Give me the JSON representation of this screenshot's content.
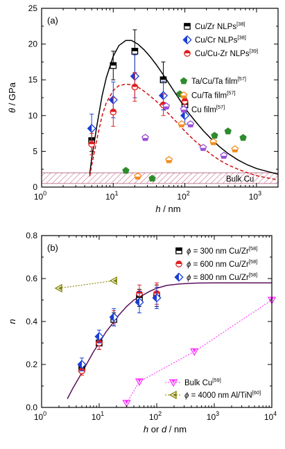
{
  "chart_data": [
    {
      "panel_label": "(a)",
      "type": "scatter",
      "xlabel_var": "h",
      "xlabel_unit": " / nm",
      "ylabel_var": "θ",
      "ylabel_unit": " / GPa",
      "x_scale": "log",
      "xlim": [
        1,
        2000
      ],
      "ylim": [
        0,
        25
      ],
      "xticks": [
        {
          "v": 1,
          "b": "10",
          "e": "0"
        },
        {
          "v": 10,
          "b": "10",
          "e": "1"
        },
        {
          "v": 100,
          "b": "10",
          "e": "2"
        },
        {
          "v": 1000,
          "b": "10",
          "e": "3"
        }
      ],
      "yticks": [
        0,
        5,
        10,
        15,
        20,
        25
      ],
      "ytick_labels": [
        "0",
        "5",
        "10",
        "15",
        "20",
        "25"
      ],
      "band": {
        "label": "Bulk Cu",
        "y_range": [
          0.5,
          2.0
        ],
        "color": "#b05c7a"
      },
      "series": [
        {
          "name": "Cu/Zr NLPs",
          "ref": "[38]",
          "marker": "square-half",
          "color": "#000000",
          "x": [
            5,
            10,
            20,
            50,
            100
          ],
          "y": [
            6.5,
            17.0,
            19.0,
            15.0,
            11.5
          ],
          "err": [
            1.5,
            2.0,
            3.0,
            2.5,
            1.0
          ]
        },
        {
          "name": "Cu/Cr NLPs",
          "ref": "[38]",
          "marker": "diamond-half",
          "color": "#1a3fd4",
          "x": [
            5,
            10,
            20,
            50,
            100
          ],
          "y": [
            8.2,
            12.2,
            15.5,
            12.8,
            10.0
          ],
          "err": [
            2.0,
            2.5,
            3.0,
            2.0,
            1.2
          ]
        },
        {
          "name": "Cu/Cu-Zr NLPs",
          "ref": "[39]",
          "marker": "circle-half",
          "color": "#e02020",
          "x": [
            5,
            10,
            20,
            50,
            100
          ],
          "y": [
            6.0,
            10.5,
            14.0,
            11.5,
            12.0
          ],
          "err": [
            1.5,
            2.0,
            2.0,
            1.5,
            1.0
          ]
        },
        {
          "name": "Ta/Cu/Ta film",
          "ref": "[57]",
          "marker": "pentagon-filled",
          "color": "#2e8b2e",
          "x": [
            15,
            35,
            85,
            260,
            400,
            650
          ],
          "y": [
            2.3,
            1.2,
            13.0,
            7.2,
            7.8,
            6.9
          ]
        },
        {
          "name": "Cu/Ta film",
          "ref": "[57]",
          "marker": "pentagon-half",
          "color": "#f28c1e",
          "x": [
            22,
            60,
            90,
            250,
            500
          ],
          "y": [
            1.5,
            3.8,
            8.8,
            6.3,
            5.3
          ]
        },
        {
          "name": "Cu film",
          "ref": "[57]",
          "marker": "pentagon-half",
          "color": "#9a4fd6",
          "x": [
            28,
            55,
            120,
            180,
            350
          ],
          "y": [
            6.9,
            11.3,
            8.8,
            5.5,
            4.4
          ]
        }
      ],
      "fits": [
        {
          "style": "solid",
          "color": "#000000",
          "x": [
            4.7,
            5,
            6,
            7,
            8,
            10,
            12,
            15,
            18,
            22,
            27,
            33,
            40,
            50,
            60,
            75,
            90,
            110,
            140,
            180,
            230,
            300,
            400,
            550,
            750,
            1000,
            1400,
            2000
          ],
          "y": [
            1.8,
            4.0,
            9.0,
            12.8,
            15.3,
            18.3,
            19.8,
            20.5,
            20.5,
            20.0,
            19.2,
            18.2,
            17.1,
            15.7,
            14.5,
            13.0,
            11.8,
            10.5,
            9.2,
            7.9,
            6.8,
            5.7,
            4.7,
            3.8,
            3.1,
            2.6,
            2.2,
            1.8
          ]
        },
        {
          "style": "dashed",
          "color": "#d01010",
          "x": [
            4.7,
            5,
            6,
            7,
            8,
            10,
            12,
            15,
            18,
            22,
            27,
            33,
            40,
            50,
            60,
            75,
            90,
            110,
            140,
            180,
            230,
            300,
            400,
            550,
            750,
            1000,
            1400,
            2000
          ],
          "y": [
            1.5,
            3.0,
            7.0,
            10.0,
            11.8,
            13.5,
            14.2,
            14.4,
            14.3,
            14.0,
            13.4,
            12.7,
            12.0,
            11.0,
            10.2,
            9.2,
            8.3,
            7.4,
            6.4,
            5.5,
            4.6,
            3.8,
            3.1,
            2.5,
            2.0,
            1.6,
            1.3,
            1.0
          ]
        }
      ]
    },
    {
      "panel_label": "(b)",
      "type": "scatter",
      "xlabel_var1": "h",
      "xlabel_mid": " or ",
      "xlabel_var2": "d",
      "xlabel_unit": " / nm",
      "ylabel_var": "n",
      "x_scale": "log",
      "xlim": [
        1,
        10000
      ],
      "ylim": [
        0,
        0.8
      ],
      "xticks": [
        {
          "v": 1,
          "b": "10",
          "e": "0"
        },
        {
          "v": 10,
          "b": "10",
          "e": "1"
        },
        {
          "v": 100,
          "b": "10",
          "e": "2"
        },
        {
          "v": 1000,
          "b": "10",
          "e": "3"
        },
        {
          "v": 10000,
          "b": "10",
          "e": "4"
        }
      ],
      "yticks": [
        0,
        0.2,
        0.4,
        0.6,
        0.8
      ],
      "ytick_labels": [
        "0.0",
        "0.2",
        "0.4",
        "0.6",
        "0.8"
      ],
      "series": [
        {
          "name_var": "ϕ",
          "name": " = 300 nm Cu/Zr",
          "ref": "[58]",
          "marker": "square-half",
          "color": "#000000",
          "x": [
            5,
            10,
            18,
            50,
            100
          ],
          "y": [
            0.18,
            0.3,
            0.41,
            0.51,
            0.52
          ],
          "err": [
            0.02,
            0.03,
            0.03,
            0.04,
            0.05
          ]
        },
        {
          "name_var": "ϕ",
          "name": " = 600 nm Cu/Zr",
          "ref": "[58]",
          "marker": "circle-half",
          "color": "#e02020",
          "x": [
            5,
            10,
            18,
            50,
            100
          ],
          "y": [
            0.17,
            0.3,
            0.42,
            0.53,
            0.53
          ],
          "err": [
            0.02,
            0.03,
            0.03,
            0.04,
            0.05
          ]
        },
        {
          "name_var": "ϕ",
          "name": " = 800 nm Cu/Zr",
          "ref": "[58]",
          "marker": "diamond-half",
          "color": "#1a3fd4",
          "x": [
            5,
            10,
            18,
            50,
            100
          ],
          "y": [
            0.2,
            0.33,
            0.42,
            0.49,
            0.51
          ],
          "err": [
            0.03,
            0.03,
            0.04,
            0.05,
            0.05
          ]
        },
        {
          "name": "Bulk Cu",
          "ref": "[59]",
          "marker": "triangle-down",
          "color": "#ff30ff",
          "line": "dotted",
          "x": [
            30,
            50,
            450,
            10000
          ],
          "y": [
            0.02,
            0.12,
            0.26,
            0.5
          ]
        },
        {
          "name_var": "ϕ",
          "name": " = 4000 nm Al/TiN",
          "ref": "[60]",
          "marker": "triangle-left",
          "color": "#808000",
          "line": "dotted",
          "x": [
            2,
            18
          ],
          "y": [
            0.555,
            0.59
          ]
        }
      ],
      "fits": [
        {
          "style": "solid",
          "color": "#5a0f5a",
          "x": [
            2.8,
            3.5,
            4.5,
            6,
            8,
            10,
            13,
            17,
            22,
            30,
            40,
            55,
            75,
            100,
            150,
            250,
            500,
            1000,
            3000,
            10000
          ],
          "y": [
            0.04,
            0.09,
            0.14,
            0.2,
            0.26,
            0.3,
            0.35,
            0.39,
            0.43,
            0.47,
            0.5,
            0.52,
            0.54,
            0.555,
            0.568,
            0.575,
            0.579,
            0.58,
            0.58,
            0.58
          ]
        }
      ]
    }
  ]
}
